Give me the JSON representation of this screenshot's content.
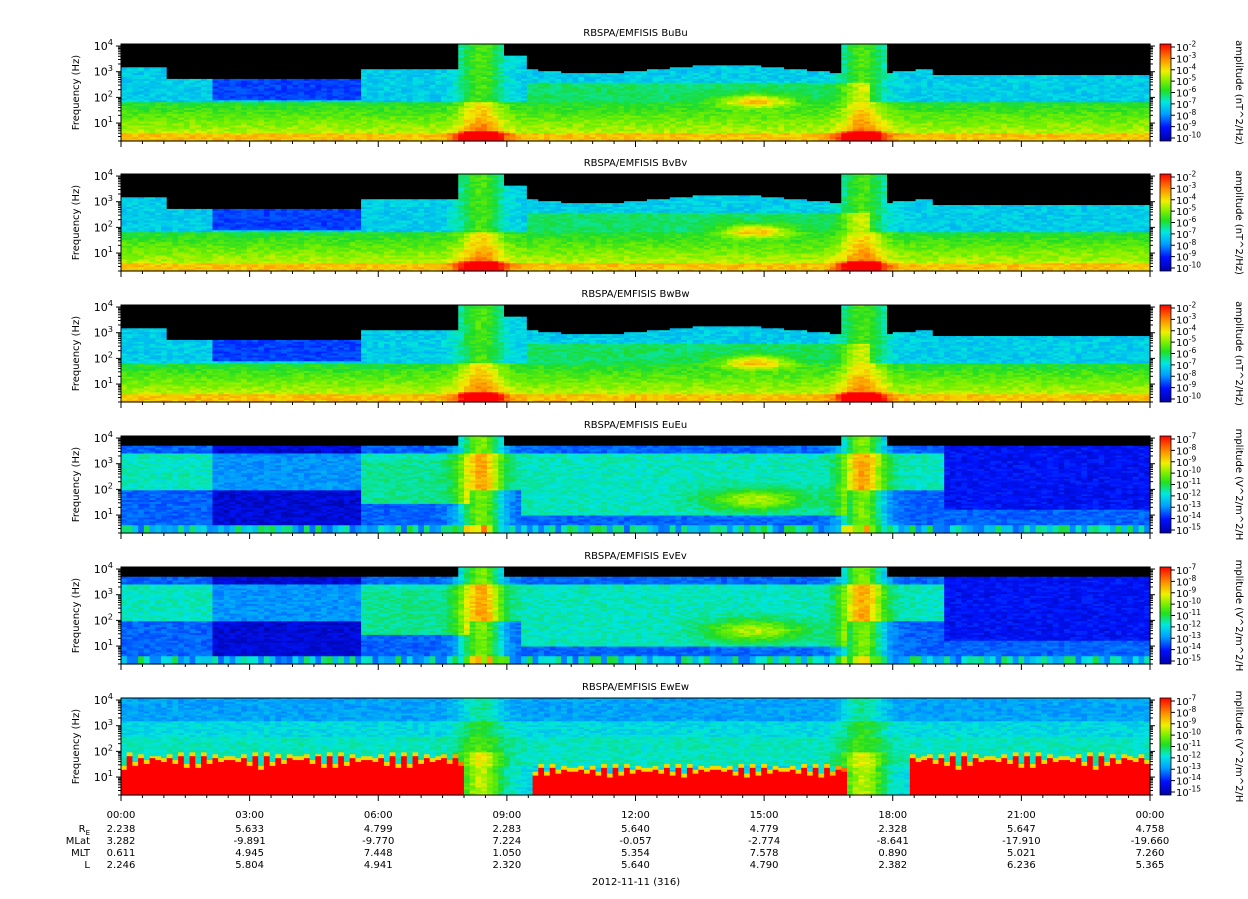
{
  "figure": {
    "date_label": "2012-11-11 (316)"
  },
  "chart_data": [
    {
      "type": "heatmap",
      "title": "RBSPA/EMFISIS  BuBu",
      "ylabel": "Frequency (Hz)",
      "yscale": "log",
      "ylim": [
        2,
        12000
      ],
      "yticks": [
        10,
        100,
        1000,
        10000
      ],
      "colorbar_label": "amplitude (nT^2/Hz)",
      "colorbar_ticks": [
        "10^-2",
        "10^-3",
        "10^-4",
        "10^-5",
        "10^-6",
        "10^-7",
        "10^-8",
        "10^-9",
        "10^-10"
      ],
      "colorbar_range": [
        -10,
        -2
      ]
    },
    {
      "type": "heatmap",
      "title": "RBSPA/EMFISIS  BvBv",
      "ylabel": "Frequency (Hz)",
      "yscale": "log",
      "ylim": [
        2,
        12000
      ],
      "yticks": [
        10,
        100,
        1000,
        10000
      ],
      "colorbar_label": "amplitude (nT^2/Hz)",
      "colorbar_ticks": [
        "10^-2",
        "10^-3",
        "10^-4",
        "10^-5",
        "10^-6",
        "10^-7",
        "10^-8",
        "10^-9",
        "10^-10"
      ],
      "colorbar_range": [
        -10,
        -2
      ]
    },
    {
      "type": "heatmap",
      "title": "RBSPA/EMFISIS  BwBw",
      "ylabel": "Frequency (Hz)",
      "yscale": "log",
      "ylim": [
        2,
        12000
      ],
      "yticks": [
        10,
        100,
        1000,
        10000
      ],
      "colorbar_label": "amplitude (nT^2/Hz)",
      "colorbar_ticks": [
        "10^-2",
        "10^-3",
        "10^-4",
        "10^-5",
        "10^-6",
        "10^-7",
        "10^-8",
        "10^-9",
        "10^-10"
      ],
      "colorbar_range": [
        -10,
        -2
      ]
    },
    {
      "type": "heatmap",
      "title": "RBSPA/EMFISIS  EuEu",
      "ylabel": "Frequency (Hz)",
      "yscale": "log",
      "ylim": [
        2,
        12000
      ],
      "yticks": [
        10,
        100,
        1000,
        10000
      ],
      "colorbar_label": "mplitude (V^2/m^2/H",
      "colorbar_ticks": [
        "10^-7",
        "10^-8",
        "10^-9",
        "10^-10",
        "10^-11",
        "10^-12",
        "10^-13",
        "10^-14",
        "10^-15"
      ],
      "colorbar_range": [
        -15,
        -7
      ]
    },
    {
      "type": "heatmap",
      "title": "RBSPA/EMFISIS  EvEv",
      "ylabel": "Frequency (Hz)",
      "yscale": "log",
      "ylim": [
        2,
        12000
      ],
      "yticks": [
        10,
        100,
        1000,
        10000
      ],
      "colorbar_label": "mplitude (V^2/m^2/H",
      "colorbar_ticks": [
        "10^-7",
        "10^-8",
        "10^-9",
        "10^-10",
        "10^-11",
        "10^-12",
        "10^-13",
        "10^-14",
        "10^-15"
      ],
      "colorbar_range": [
        -15,
        -7
      ]
    },
    {
      "type": "heatmap",
      "title": "RBSPA/EMFISIS  EwEw",
      "ylabel": "Frequency (Hz)",
      "yscale": "log",
      "ylim": [
        2,
        12000
      ],
      "yticks": [
        10,
        100,
        1000,
        10000
      ],
      "colorbar_label": "mplitude (V^2/m^2/H",
      "colorbar_ticks": [
        "10^-7",
        "10^-8",
        "10^-9",
        "10^-10",
        "10^-11",
        "10^-12",
        "10^-13",
        "10^-14",
        "10^-15"
      ],
      "colorbar_range": [
        -15,
        -7
      ]
    }
  ],
  "time_axis": {
    "labels": [
      "00:00",
      "03:00",
      "06:00",
      "09:00",
      "12:00",
      "15:00",
      "18:00",
      "21:00",
      "00:00"
    ],
    "range_hours": [
      0,
      24
    ]
  },
  "ephemeris": {
    "rows": [
      {
        "label": "RE",
        "values": [
          "2.238",
          "5.633",
          "4.799",
          "2.283",
          "5.640",
          "4.779",
          "2.328",
          "5.647",
          "4.758"
        ]
      },
      {
        "label": "MLat",
        "values": [
          "3.282",
          "-9.891",
          "-9.770",
          "7.224",
          "-0.057",
          "-2.774",
          "-8.641",
          "-17.910",
          "-19.660"
        ]
      },
      {
        "label": "MLT",
        "values": [
          "0.611",
          "4.945",
          "7.448",
          "1.050",
          "5.354",
          "7.578",
          "0.890",
          "5.021",
          "7.260"
        ]
      },
      {
        "label": "L",
        "values": [
          "2.246",
          "5.804",
          "4.941",
          "2.320",
          "5.640",
          "4.790",
          "2.382",
          "6.236",
          "5.365"
        ]
      }
    ]
  }
}
